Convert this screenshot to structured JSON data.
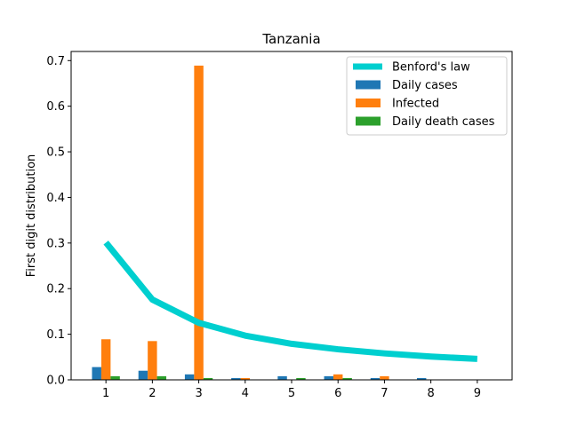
{
  "chart_data": {
    "type": "bar",
    "title": "Tanzania",
    "xlabel": "",
    "ylabel": "First digit distribution",
    "categories": [
      "1",
      "2",
      "3",
      "4",
      "5",
      "6",
      "7",
      "8",
      "9"
    ],
    "ylim": [
      0,
      0.72
    ],
    "yticks": [
      "0.0",
      "0.1",
      "0.2",
      "0.3",
      "0.4",
      "0.5",
      "0.6",
      "0.7"
    ],
    "series": [
      {
        "name": "Daily cases",
        "type": "bar",
        "color": "#1f77b4",
        "values": [
          0.028,
          0.02,
          0.012,
          0.004,
          0.008,
          0.008,
          0.004,
          0.004,
          0.0
        ]
      },
      {
        "name": "Infected",
        "type": "bar",
        "color": "#ff7f0e",
        "values": [
          0.089,
          0.085,
          0.689,
          0.004,
          0.0,
          0.012,
          0.008,
          0.0,
          0.0
        ]
      },
      {
        "name": "Daily death cases",
        "type": "bar",
        "color": "#2ca02c",
        "values": [
          0.008,
          0.008,
          0.004,
          0.0,
          0.004,
          0.004,
          0.0,
          0.0,
          0.0
        ]
      },
      {
        "name": "Benford's law",
        "type": "line",
        "color": "#00cfcf",
        "values": [
          0.301,
          0.176,
          0.125,
          0.097,
          0.079,
          0.067,
          0.058,
          0.051,
          0.046
        ]
      }
    ],
    "legend": {
      "position": "top-right",
      "entries": [
        "Benford's law",
        "Daily cases",
        "Infected",
        "Daily death cases"
      ]
    },
    "grid": false
  }
}
